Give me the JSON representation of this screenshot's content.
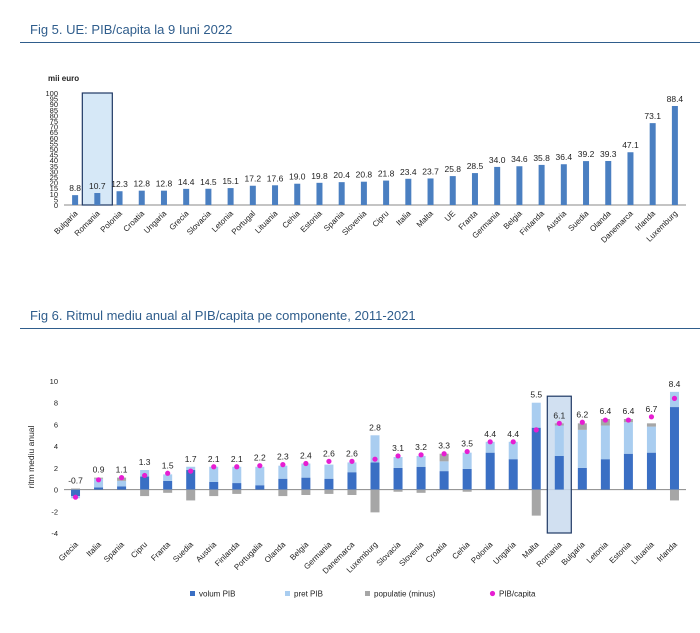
{
  "chart_data": [
    {
      "type": "bar",
      "title": "Fig 5. UE: PIB/capita la 9 Iuni 2022",
      "ylabel": "mii euro",
      "ylim": [
        0,
        100
      ],
      "yticks": [
        0,
        5,
        10,
        15,
        20,
        25,
        30,
        35,
        40,
        45,
        50,
        55,
        60,
        65,
        70,
        75,
        80,
        85,
        90,
        95,
        100
      ],
      "categories": [
        "Bulgaria",
        "Romania",
        "Polonia",
        "Croatia",
        "Ungaria",
        "Grecia",
        "Slovacia",
        "Letonia",
        "Portugal",
        "Lituania",
        "Cehia",
        "Estonia",
        "Spania",
        "Slovenia",
        "Cipru",
        "Italia",
        "Malta",
        "UE",
        "Franta",
        "Germania",
        "Belgia",
        "Finlanda",
        "Austria",
        "Suedia",
        "Olanda",
        "Danemarca",
        "Irlanda",
        "Luxemburg"
      ],
      "values": [
        8.8,
        10.7,
        12.3,
        12.8,
        12.8,
        14.4,
        14.5,
        15.1,
        17.2,
        17.6,
        19.0,
        19.8,
        20.4,
        20.8,
        21.8,
        23.4,
        23.7,
        25.8,
        28.5,
        34.0,
        34.6,
        35.8,
        36.4,
        39.2,
        39.3,
        47.1,
        73.1,
        88.4
      ],
      "labels": [
        "8.8",
        "10.7",
        "12.3",
        "12.8",
        "12.8",
        "14.4",
        "14.5",
        "15.1",
        "17.2",
        "17.6",
        "19.0",
        "19.8",
        "20.4",
        "20.8",
        "21.8",
        "23.4",
        "23.7",
        "25.8",
        "28.5",
        "34.0",
        "34.6",
        "35.8",
        "36.4",
        "39.2",
        "39.3",
        "47.1",
        "73.1",
        "88.4"
      ],
      "highlight": "Romania",
      "colors": {
        "bar": "#4a7fc1",
        "highlight_fill": "#d6e8f7",
        "highlight_stroke": "#1f3864"
      }
    },
    {
      "type": "bar",
      "stacked": true,
      "title": "Fig 6. Ritmul mediu anual al PIB/capita pe componente, 2011-2021",
      "ylabel": "ritm mediu anual",
      "ylim": [
        -4,
        10
      ],
      "yticks": [
        -4,
        -2,
        0,
        2,
        4,
        6,
        8,
        10
      ],
      "categories": [
        "Grecia",
        "Italia",
        "Spania",
        "Cipru",
        "Franta",
        "Suedia",
        "Austria",
        "Finlanda",
        "Portugalia",
        "Olanda",
        "Belgia",
        "Germania",
        "Danemarca",
        "Luxemburg",
        "Slovacia",
        "Slovenia",
        "Croatia",
        "Cehia",
        "Polonia",
        "Ungaria",
        "Malta",
        "Romania",
        "Bulgaria",
        "Letonia",
        "Estonia",
        "Lituania",
        "Irlanda"
      ],
      "series": [
        {
          "name": "volum PIB",
          "color": "#3a6fc4",
          "values": [
            -0.6,
            0.2,
            0.3,
            1.2,
            0.8,
            1.8,
            0.7,
            0.6,
            0.4,
            1.0,
            1.1,
            1.0,
            1.6,
            2.5,
            2.0,
            2.1,
            1.7,
            1.9,
            3.4,
            2.8,
            5.7,
            3.1,
            2.0,
            2.8,
            3.3,
            3.4,
            7.6
          ]
        },
        {
          "name": "pret PIB",
          "color": "#a9cdf0",
          "values": [
            -0.2,
            0.8,
            0.5,
            0.6,
            0.6,
            0.3,
            1.4,
            1.5,
            1.7,
            1.2,
            1.3,
            1.3,
            0.9,
            2.5,
            1.0,
            1.0,
            0.9,
            1.5,
            1.0,
            1.6,
            2.3,
            2.8,
            3.5,
            3.1,
            2.9,
            2.4,
            1.4
          ]
        },
        {
          "name": "populatie (minus)",
          "color": "#a6a6a6",
          "values": [
            0.1,
            0.1,
            0.3,
            -0.6,
            -0.3,
            -1.0,
            -0.6,
            -0.4,
            0.0,
            -0.6,
            -0.5,
            -0.4,
            -0.5,
            -2.1,
            -0.2,
            -0.3,
            0.7,
            -0.2,
            0.0,
            0.0,
            -2.4,
            0.2,
            0.6,
            0.6,
            0.3,
            0.3,
            -1.0
          ]
        }
      ],
      "marker": {
        "name": "PIB/capita",
        "color": "#e61ed2",
        "values": [
          -0.7,
          0.9,
          1.1,
          1.3,
          1.5,
          1.7,
          2.1,
          2.1,
          2.2,
          2.3,
          2.4,
          2.6,
          2.6,
          2.8,
          3.1,
          3.2,
          3.3,
          3.5,
          4.4,
          4.4,
          5.5,
          6.1,
          6.2,
          6.4,
          6.4,
          6.7,
          8.4
        ]
      },
      "labels": [
        "-0.7",
        "0.9",
        "1.1",
        "1.3",
        "1.5",
        "1.7",
        "2.1",
        "2.1",
        "2.2",
        "2.3",
        "2.4",
        "2.6",
        "2.6",
        "2.8",
        "3.1",
        "3.2",
        "3.3",
        "3.5",
        "4.4",
        "4.4",
        "5.5",
        "6.1",
        "6.2",
        "6.4",
        "6.4",
        "6.7",
        "8.4"
      ],
      "highlight": "Romania",
      "legend_position": "bottom"
    }
  ]
}
